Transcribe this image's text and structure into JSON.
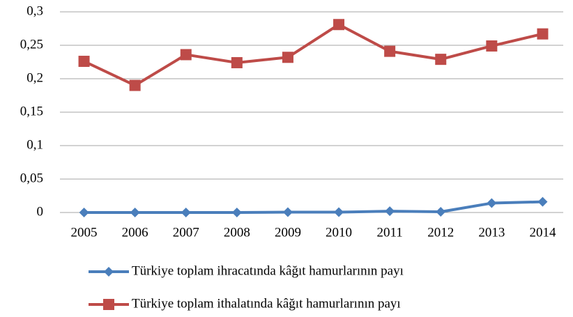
{
  "chart_data": {
    "type": "line",
    "categories": [
      "2005",
      "2006",
      "2007",
      "2008",
      "2009",
      "2010",
      "2011",
      "2012",
      "2013",
      "2014"
    ],
    "series": [
      {
        "name": "Türkiye toplam ihracatında kâğıt hamurlarının payı",
        "color": "#4a7ebb",
        "marker": "diamond",
        "values": [
          0,
          0,
          0,
          0,
          0.0005,
          0.0005,
          0.002,
          0.001,
          0.014,
          0.016
        ]
      },
      {
        "name": "Türkiye toplam ithalatında kâğıt hamurlarının payı",
        "color": "#be4b48",
        "marker": "square",
        "values": [
          0.226,
          0.19,
          0.236,
          0.224,
          0.232,
          0.281,
          0.241,
          0.229,
          0.249,
          0.267
        ]
      }
    ],
    "ylim": [
      0,
      0.3
    ],
    "yticks": [
      0,
      {
        "value": 0.05,
        "label": "0,05"
      },
      {
        "value": 0.1,
        "label": "0,1"
      },
      {
        "value": 0.15,
        "label": "0,15"
      },
      {
        "value": 0.2,
        "label": "0,2"
      },
      {
        "value": 0.25,
        "label": "0,25"
      },
      {
        "value": 0.3,
        "label": "0,3"
      }
    ],
    "grid": true,
    "legend": "bottom"
  }
}
